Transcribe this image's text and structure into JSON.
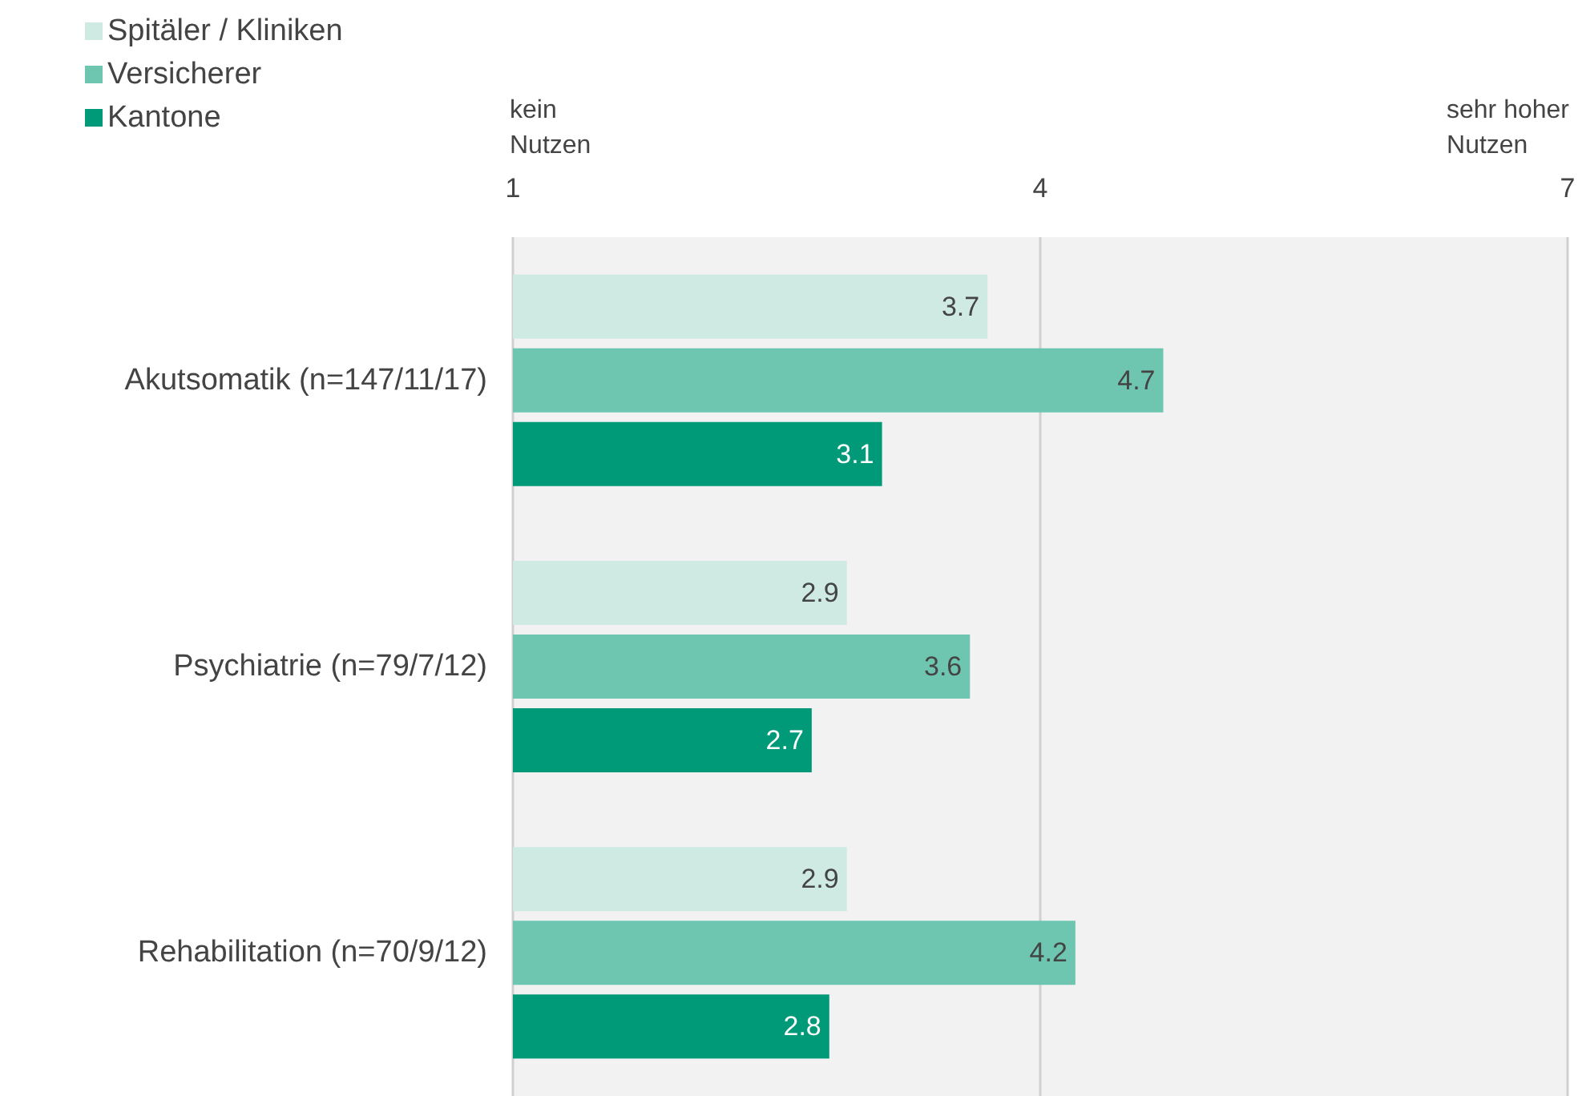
{
  "chart_data": {
    "type": "bar",
    "orientation": "horizontal",
    "categories": [
      "Akutsomatik (n=147/11/17)",
      "Psychiatrie (n=79/7/12)",
      "Rehabilitation (n=70/9/12)"
    ],
    "series": [
      {
        "name": "Spitäler / Kliniken",
        "color": "#cfeae3",
        "values": [
          3.7,
          2.9,
          2.9
        ]
      },
      {
        "name": "Versicherer",
        "color": "#6ec6b0",
        "values": [
          4.7,
          3.6,
          4.2
        ]
      },
      {
        "name": "Kantone",
        "color": "#009a78",
        "values": [
          3.1,
          2.7,
          2.8
        ]
      }
    ],
    "xlim": [
      1,
      7
    ],
    "xticks": [
      1,
      4,
      7
    ],
    "grid": "x",
    "legend": "top left",
    "data_labels": true,
    "annotations": [
      "kein\nNutzen",
      "sehr hoher\nNutzen"
    ]
  }
}
